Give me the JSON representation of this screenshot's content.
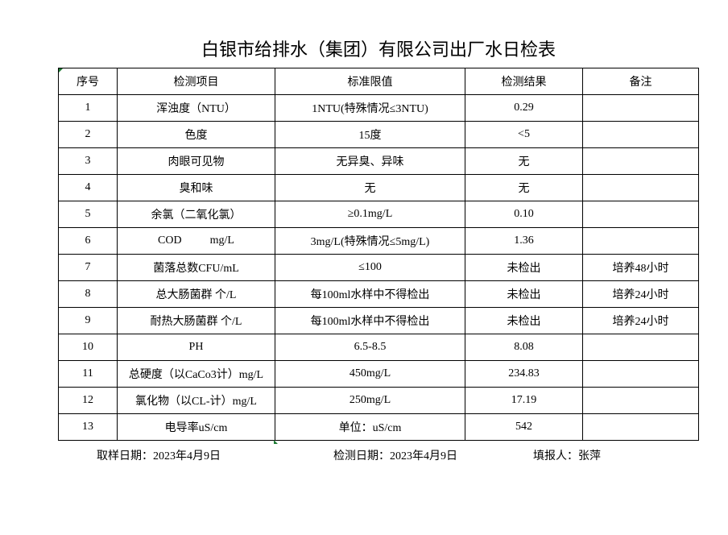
{
  "title": "白银市给排水（集团）有限公司出厂水日检表",
  "table": {
    "headers": [
      "序号",
      "检测项目",
      "标准限值",
      "检测结果",
      "备注"
    ],
    "rows": [
      [
        "1",
        "浑浊度（NTU）",
        "1NTU(特殊情况≤3NTU)",
        "0.29",
        ""
      ],
      [
        "2",
        "色度",
        "15度",
        "<5",
        ""
      ],
      [
        "3",
        "肉眼可见物",
        "无异臭、异味",
        "无",
        ""
      ],
      [
        "4",
        "臭和味",
        "无",
        "无",
        ""
      ],
      [
        "5",
        "余氯（二氧化氯）",
        "≥0.1mg/L",
        "0.10",
        ""
      ],
      [
        "6",
        "COD          mg/L",
        "3mg/L(特殊情况≤5mg/L)",
        "1.36",
        ""
      ],
      [
        "7",
        "菌落总数CFU/mL",
        "≤100",
        "未检出",
        "培养48小时"
      ],
      [
        "8",
        "总大肠菌群 个/L",
        "每100ml水样中不得检出",
        "未检出",
        "培养24小时"
      ],
      [
        "9",
        "耐热大肠菌群 个/L",
        "每100ml水样中不得检出",
        "未检出",
        "培养24小时"
      ],
      [
        "10",
        "PH",
        "6.5-8.5",
        "8.08",
        ""
      ],
      [
        "11",
        "总硬度（以CaCo3计）mg/L",
        "450mg/L",
        "234.83",
        ""
      ],
      [
        "12",
        "氯化物（以CL-计）mg/L",
        "250mg/L",
        "17.19",
        ""
      ],
      [
        "13",
        "电导率uS/cm",
        "单位：uS/cm",
        "542",
        ""
      ]
    ]
  },
  "footer": {
    "sampling_date": "取样日期：2023年4月9日",
    "test_date": "检测日期：2023年4月9日",
    "reporter": "填报人：张萍"
  },
  "colors": {
    "cell_marker": "#1e7b34"
  }
}
